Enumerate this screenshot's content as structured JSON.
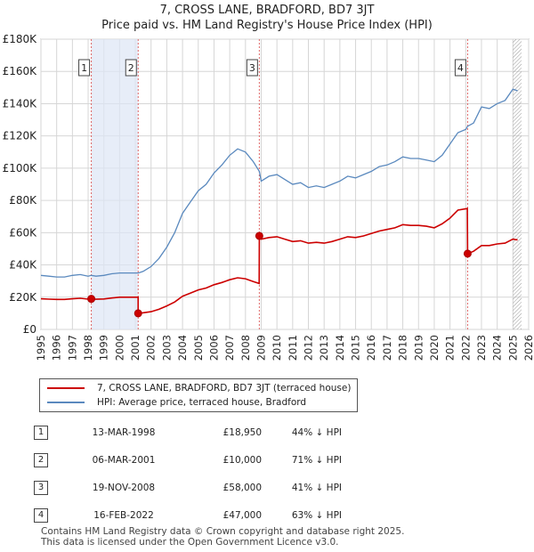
{
  "title_line1": "7, CROSS LANE, BRADFORD, BD7 3JT",
  "title_line2": "Price paid vs. HM Land Registry's House Price Index (HPI)",
  "legend": {
    "property": "7, CROSS LANE, BRADFORD, BD7 3JT (terraced house)",
    "hpi": "HPI: Average price, terraced house, Bradford"
  },
  "colors": {
    "property_line": "#cc0000",
    "hpi_line": "#5a89be",
    "sale_band": "#dde6f5",
    "grid": "#d6d6d6",
    "axis_bg": "#ffffff"
  },
  "sales": [
    {
      "num": "1",
      "date": "13-MAR-1998",
      "price": "£18,950",
      "hpi": "44% ↓ HPI"
    },
    {
      "num": "2",
      "date": "06-MAR-2001",
      "price": "£10,000",
      "hpi": "71% ↓ HPI"
    },
    {
      "num": "3",
      "date": "19-NOV-2008",
      "price": "£58,000",
      "hpi": "41% ↓ HPI"
    },
    {
      "num": "4",
      "date": "16-FEB-2022",
      "price": "£47,000",
      "hpi": "63% ↓ HPI"
    }
  ],
  "footer_line1": "Contains HM Land Registry data © Crown copyright and database right 2025.",
  "footer_line2": "This data is licensed under the Open Government Licence v3.0.",
  "chart_data": {
    "type": "line",
    "title": "7, CROSS LANE, BRADFORD, BD7 3JT",
    "subtitle": "Price paid vs. HM Land Registry's House Price Index (HPI)",
    "xlim": [
      1995,
      2026
    ],
    "ylim": [
      0,
      180000
    ],
    "x_ticks": [
      1995,
      1996,
      1997,
      1998,
      1999,
      2000,
      2001,
      2002,
      2003,
      2004,
      2005,
      2006,
      2007,
      2008,
      2009,
      2010,
      2011,
      2012,
      2013,
      2014,
      2015,
      2016,
      2017,
      2018,
      2019,
      2020,
      2021,
      2022,
      2023,
      2024,
      2025,
      2026
    ],
    "y_ticks": [
      0,
      20000,
      40000,
      60000,
      80000,
      100000,
      120000,
      140000,
      160000,
      180000
    ],
    "y_tick_labels": [
      "£0",
      "£20K",
      "£40K",
      "£60K",
      "£80K",
      "£100K",
      "£120K",
      "£140K",
      "£160K",
      "£180K"
    ],
    "grid": true,
    "forecast_from": 2025.0,
    "sale_bands": [
      [
        1998.2,
        2001.18
      ]
    ],
    "sale_markers": [
      {
        "num": "1",
        "x": 1998.2,
        "y": 18950
      },
      {
        "num": "2",
        "x": 2001.18,
        "y": 10000
      },
      {
        "num": "3",
        "x": 2008.88,
        "y": 58000
      },
      {
        "num": "4",
        "x": 2022.12,
        "y": 47000
      }
    ],
    "series": [
      {
        "name": "HPI: Average price, terraced house, Bradford",
        "x": [
          1995,
          1995.5,
          1996,
          1996.5,
          1997,
          1997.5,
          1998,
          1998.2,
          1998.5,
          1999,
          1999.5,
          2000,
          2000.5,
          2001,
          2001.2,
          2001.5,
          2002,
          2002.5,
          2003,
          2003.5,
          2004,
          2004.5,
          2005,
          2005.5,
          2006,
          2006.5,
          2007,
          2007.5,
          2008,
          2008.5,
          2008.88,
          2009,
          2009.5,
          2010,
          2010.5,
          2011,
          2011.5,
          2012,
          2012.5,
          2013,
          2013.5,
          2014,
          2014.5,
          2015,
          2015.5,
          2016,
          2016.5,
          2017,
          2017.5,
          2018,
          2018.5,
          2019,
          2019.5,
          2020,
          2020.5,
          2021,
          2021.5,
          2022,
          2022.12,
          2022.5,
          2023,
          2023.5,
          2024,
          2024.5,
          2025,
          2025.3
        ],
        "values": [
          33500,
          33000,
          32500,
          32500,
          33500,
          34000,
          33000,
          33500,
          33000,
          33500,
          34500,
          35000,
          35000,
          35000,
          35000,
          36000,
          39000,
          44000,
          51000,
          60000,
          72000,
          79000,
          86000,
          90000,
          97000,
          102000,
          108000,
          112000,
          110000,
          104000,
          98000,
          92000,
          95000,
          96000,
          93000,
          90000,
          91000,
          88000,
          89000,
          88000,
          90000,
          92000,
          95000,
          94000,
          96000,
          98000,
          101000,
          102000,
          104000,
          107000,
          106000,
          106000,
          105000,
          104000,
          108000,
          115000,
          122000,
          124000,
          126000,
          128000,
          138000,
          137000,
          140000,
          142000,
          149000,
          148000
        ]
      },
      {
        "name": "7, CROSS LANE, BRADFORD, BD7 3JT (terraced house)",
        "x": [
          1995,
          1995.5,
          1996,
          1996.5,
          1997,
          1997.5,
          1998,
          1998.2,
          1998.5,
          1999,
          1999.5,
          2000,
          2000.5,
          2001,
          2001.18,
          2001.18,
          2001.5,
          2002,
          2002.5,
          2003,
          2003.5,
          2004,
          2004.5,
          2005,
          2005.5,
          2006,
          2006.5,
          2007,
          2007.5,
          2008,
          2008.5,
          2008.87,
          2008.88,
          2009,
          2009.5,
          2010,
          2010.5,
          2011,
          2011.5,
          2012,
          2012.5,
          2013,
          2013.5,
          2014,
          2014.5,
          2015,
          2015.5,
          2016,
          2016.5,
          2017,
          2017.5,
          2018,
          2018.5,
          2019,
          2019.5,
          2020,
          2020.5,
          2021,
          2021.5,
          2022.1,
          2022.12,
          2022.5,
          2023,
          2023.5,
          2024,
          2024.5,
          2025,
          2025.3
        ],
        "values": [
          19000,
          18800,
          18600,
          18600,
          19000,
          19300,
          18800,
          18950,
          18700,
          18900,
          19500,
          20000,
          20000,
          20000,
          20000,
          10000,
          10300,
          11000,
          12500,
          14600,
          17000,
          20600,
          22500,
          24500,
          25700,
          27700,
          29100,
          30800,
          32000,
          31400,
          29700,
          28500,
          58000,
          56000,
          57000,
          57500,
          56000,
          54500,
          55000,
          53500,
          54000,
          53500,
          54500,
          56000,
          57500,
          57000,
          58000,
          59500,
          61000,
          62000,
          63000,
          65000,
          64500,
          64500,
          64000,
          63000,
          65500,
          69000,
          74000,
          75000,
          47000,
          48500,
          52000,
          52000,
          53000,
          53500,
          56000,
          55500
        ]
      }
    ]
  }
}
